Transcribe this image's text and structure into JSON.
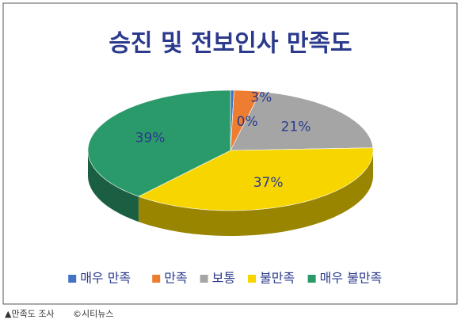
{
  "chart_data": {
    "type": "pie",
    "title": "승진 및 전보인사 만족도",
    "categories": [
      "매우 만족",
      "만족",
      "보통",
      "불만족",
      "매우 불만족"
    ],
    "values": [
      0.4,
      3,
      21,
      37,
      39
    ],
    "value_labels": [
      "0%",
      "3%",
      "21%",
      "37%",
      "39%"
    ],
    "colors": [
      "#4472c4",
      "#ed7d31",
      "#a5a5a5",
      "#f7d600",
      "#2b9a6a"
    ],
    "legend": "bottom"
  },
  "caption": {
    "label": "▲만족도 조사",
    "credit": "©시티뉴스"
  }
}
